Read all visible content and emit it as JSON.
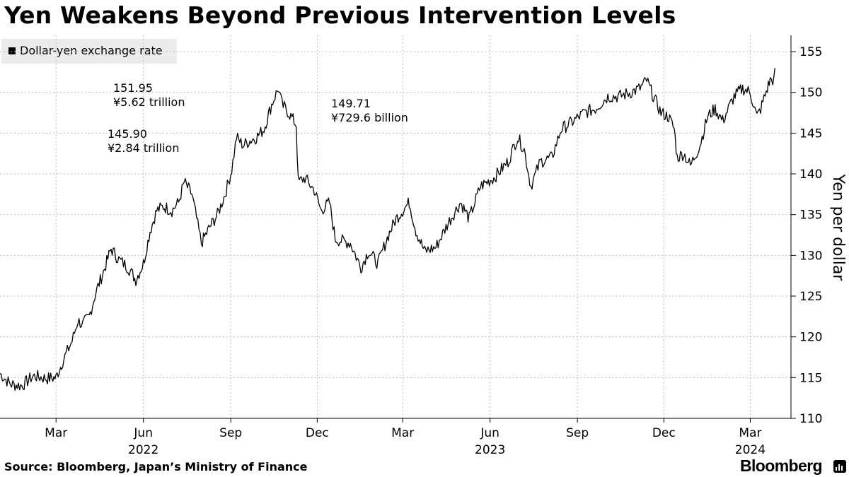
{
  "title": "Yen Weakens Beyond Previous Intervention Levels",
  "legend_label": "Dollar-yen exchange rate",
  "source": "Source: Bloomberg, Japan’s Ministry of Finance",
  "brand": "Bloomberg",
  "colors": {
    "line": "#000000",
    "grid": "#bbbbbb",
    "legend_bg": "#ececec"
  },
  "chart_data": {
    "type": "line",
    "title": "Yen Weakens Beyond Previous Intervention Levels",
    "ylabel": "Yen per dollar",
    "xlabel": "",
    "ylim": [
      110,
      157
    ],
    "yticks": [
      110,
      115,
      120,
      125,
      130,
      135,
      140,
      145,
      150,
      155
    ],
    "x_range": [
      "2022-01-01",
      "2024-03-26"
    ],
    "x_tick_labels": [
      {
        "label": "Mar",
        "date": "2022-03-01"
      },
      {
        "label": "Jun",
        "date": "2022-06-01"
      },
      {
        "label": "Sep",
        "date": "2022-09-01"
      },
      {
        "label": "Dec",
        "date": "2022-12-01"
      },
      {
        "label": "Mar",
        "date": "2023-03-01"
      },
      {
        "label": "Jun",
        "date": "2023-06-01"
      },
      {
        "label": "Sep",
        "date": "2023-09-01"
      },
      {
        "label": "Dec",
        "date": "2023-12-01"
      },
      {
        "label": "Mar",
        "date": "2024-03-01"
      }
    ],
    "year_labels": [
      {
        "label": "2022",
        "date": "2022-06-01"
      },
      {
        "label": "2023",
        "date": "2023-06-01"
      },
      {
        "label": "2024",
        "date": "2024-03-01"
      }
    ],
    "series": [
      {
        "name": "Dollar-yen exchange rate",
        "points": [
          [
            "2022-01-01",
            115.5
          ],
          [
            "2022-01-12",
            114.2
          ],
          [
            "2022-01-24",
            114.0
          ],
          [
            "2022-02-05",
            115.2
          ],
          [
            "2022-02-20",
            114.9
          ],
          [
            "2022-03-01",
            115.0
          ],
          [
            "2022-03-08",
            117.0
          ],
          [
            "2022-03-18",
            119.5
          ],
          [
            "2022-03-24",
            122.0
          ],
          [
            "2022-03-29",
            121.5
          ],
          [
            "2022-04-05",
            122.5
          ],
          [
            "2022-04-12",
            125.5
          ],
          [
            "2022-04-20",
            128.0
          ],
          [
            "2022-04-28",
            130.8
          ],
          [
            "2022-05-06",
            129.5
          ],
          [
            "2022-05-16",
            128.5
          ],
          [
            "2022-05-24",
            127.0
          ],
          [
            "2022-06-01",
            129.0
          ],
          [
            "2022-06-08",
            133.0
          ],
          [
            "2022-06-15",
            135.5
          ],
          [
            "2022-06-22",
            136.0
          ],
          [
            "2022-07-01",
            135.5
          ],
          [
            "2022-07-08",
            136.5
          ],
          [
            "2022-07-14",
            139.0
          ],
          [
            "2022-07-22",
            137.5
          ],
          [
            "2022-08-01",
            131.5
          ],
          [
            "2022-08-10",
            133.5
          ],
          [
            "2022-08-18",
            135.0
          ],
          [
            "2022-08-26",
            137.5
          ],
          [
            "2022-09-02",
            140.5
          ],
          [
            "2022-09-07",
            144.5
          ],
          [
            "2022-09-14",
            143.5
          ],
          [
            "2022-09-20",
            144.0
          ],
          [
            "2022-09-28",
            144.5
          ],
          [
            "2022-10-06",
            145.5
          ],
          [
            "2022-10-14",
            148.5
          ],
          [
            "2022-10-21",
            150.5
          ],
          [
            "2022-10-25",
            148.5
          ],
          [
            "2022-11-01",
            147.5
          ],
          [
            "2022-11-09",
            146.0
          ],
          [
            "2022-11-11",
            139.0
          ],
          [
            "2022-11-18",
            139.5
          ],
          [
            "2022-11-28",
            138.0
          ],
          [
            "2022-12-05",
            135.5
          ],
          [
            "2022-12-14",
            136.5
          ],
          [
            "2022-12-20",
            132.0
          ],
          [
            "2023-01-05",
            131.5
          ],
          [
            "2023-01-16",
            128.5
          ],
          [
            "2023-01-24",
            130.5
          ],
          [
            "2023-02-03",
            129.0
          ],
          [
            "2023-02-14",
            132.5
          ],
          [
            "2023-02-22",
            134.5
          ],
          [
            "2023-03-08",
            136.5
          ],
          [
            "2023-03-15",
            133.0
          ],
          [
            "2023-03-24",
            130.5
          ],
          [
            "2023-04-05",
            131.0
          ],
          [
            "2023-04-18",
            134.0
          ],
          [
            "2023-05-01",
            136.5
          ],
          [
            "2023-05-10",
            134.5
          ],
          [
            "2023-05-22",
            138.5
          ],
          [
            "2023-06-05",
            139.5
          ],
          [
            "2023-06-20",
            141.5
          ],
          [
            "2023-06-30",
            144.5
          ],
          [
            "2023-07-07",
            143.0
          ],
          [
            "2023-07-14",
            138.5
          ],
          [
            "2023-07-24",
            141.5
          ],
          [
            "2023-08-05",
            142.0
          ],
          [
            "2023-08-15",
            145.5
          ],
          [
            "2023-08-28",
            146.5
          ],
          [
            "2023-09-08",
            147.5
          ],
          [
            "2023-09-20",
            148.0
          ],
          [
            "2023-10-03",
            149.5
          ],
          [
            "2023-10-15",
            149.5
          ],
          [
            "2023-10-27",
            150.0
          ],
          [
            "2023-11-06",
            150.5
          ],
          [
            "2023-11-13",
            151.5
          ],
          [
            "2023-11-20",
            149.5
          ],
          [
            "2023-11-28",
            147.5
          ],
          [
            "2023-12-06",
            147.0
          ],
          [
            "2023-12-12",
            145.5
          ],
          [
            "2023-12-15",
            142.0
          ],
          [
            "2023-12-22",
            142.5
          ],
          [
            "2023-12-29",
            141.0
          ],
          [
            "2024-01-08",
            143.5
          ],
          [
            "2024-01-16",
            147.0
          ],
          [
            "2024-01-24",
            148.0
          ],
          [
            "2024-02-01",
            146.5
          ],
          [
            "2024-02-13",
            149.5
          ],
          [
            "2024-02-22",
            150.5
          ],
          [
            "2024-03-01",
            150.0
          ],
          [
            "2024-03-08",
            147.0
          ],
          [
            "2024-03-12",
            148.0
          ],
          [
            "2024-03-19",
            150.5
          ],
          [
            "2024-03-22",
            151.5
          ],
          [
            "2024-03-26",
            151.6
          ],
          [
            "2024-03-27",
            153.0
          ]
        ]
      }
    ],
    "annotations": [
      {
        "value_label": "151.95",
        "amount_label": "¥5.62 trillion"
      },
      {
        "value_label": "145.90",
        "amount_label": "¥2.84 trillion"
      },
      {
        "value_label": "149.71",
        "amount_label": "¥729.6 billion"
      }
    ]
  }
}
